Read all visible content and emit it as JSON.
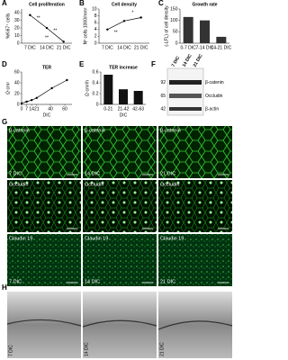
{
  "chart_data": [
    {
      "type": "line",
      "title": "Cell proliferation",
      "ylabel": "%Ki67⁺ cells",
      "categories": [
        "7 DIC",
        "14 DIC",
        "21 DIC"
      ],
      "values": [
        37,
        20,
        2
      ],
      "color": "#000000",
      "ylim": [
        0,
        45
      ],
      "yticks": [
        0,
        10,
        20,
        30,
        40
      ],
      "annotations": [
        "**",
        "**",
        "**"
      ]
    },
    {
      "type": "line",
      "title": "Cell density",
      "ylabel": "Nº cells 1000/mm²",
      "categories": [
        "7 DIC",
        "14 DIC",
        "21 DIC"
      ],
      "values": [
        4,
        6.5,
        7.5
      ],
      "color": "#000000",
      "ylim": [
        0,
        10
      ],
      "yticks": [
        0,
        2,
        4,
        6,
        8,
        10
      ],
      "annotations": [
        "**",
        "*"
      ]
    },
    {
      "type": "bar",
      "title": "Growth rate",
      "ylabel": "(-LFL) of cell density",
      "categories": [
        "0-7 DIC",
        "7-14 DIC",
        "14-21 DIC"
      ],
      "values": [
        115,
        100,
        28
      ],
      "color": "#333333",
      "ylim": [
        0,
        150
      ],
      "yticks": [
        0,
        50,
        100,
        150
      ]
    },
    {
      "type": "line",
      "title": "TER",
      "ylabel": "Ω·cm²",
      "xlabel": "DIC",
      "x": [
        0,
        7,
        14,
        21,
        42,
        63
      ],
      "values": [
        2,
        5,
        8,
        12,
        30,
        45
      ],
      "color": "#000000",
      "xlim": [
        0,
        70
      ],
      "xticks": [
        0,
        7,
        14,
        21,
        40,
        60
      ],
      "ylim": [
        0,
        60
      ],
      "yticks": [
        0,
        20,
        40,
        60
      ]
    },
    {
      "type": "bar",
      "title": "TER increase",
      "ylabel": "Ω·cm²/h",
      "xlabel": "DIC",
      "categories": [
        "0-21",
        "21-42",
        "42-63"
      ],
      "values": [
        0.55,
        0.28,
        0.25
      ],
      "color": "#111111",
      "ylim": [
        0,
        0.6
      ],
      "yticks": [
        0,
        0.2,
        0.4,
        0.6
      ]
    }
  ],
  "letters": [
    "A",
    "B",
    "C",
    "D",
    "E",
    "F",
    "G",
    "H"
  ],
  "blot": {
    "lanes": [
      "7 DIC",
      "14 DIC",
      "21 DIC"
    ],
    "markers": [
      "92",
      "65",
      "42"
    ],
    "proteins": [
      "β-catenin",
      "Occludin",
      "β-actin"
    ]
  },
  "micro": {
    "stains": [
      "β-catenin",
      "Occludin",
      "Claudin 19"
    ],
    "columns": [
      "7 DIC",
      "14 DIC",
      "21 DIC"
    ]
  }
}
